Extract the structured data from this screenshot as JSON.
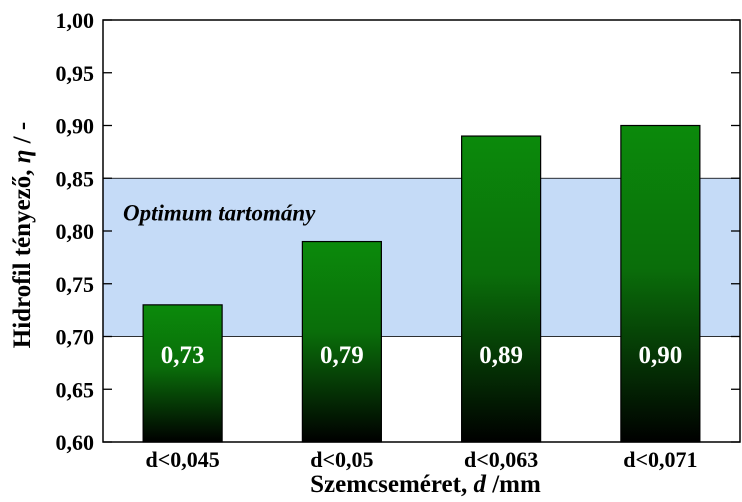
{
  "chart_data": {
    "type": "bar",
    "categories": [
      "d<0,045",
      "d<0,05",
      "d<0,063",
      "d<0,071"
    ],
    "values": [
      0.73,
      0.79,
      0.89,
      0.9
    ],
    "data_labels": [
      "0,73",
      "0,79",
      "0,89",
      "0,90"
    ],
    "ylim": [
      0.6,
      1.0
    ],
    "yticks": [
      0.6,
      0.65,
      0.7,
      0.75,
      0.8,
      0.85,
      0.9,
      0.95,
      1.0
    ],
    "ytick_labels": [
      "0,60",
      "0,65",
      "0,70",
      "0,75",
      "0,80",
      "0,85",
      "0,90",
      "0,95",
      "1,00"
    ],
    "xlabel_prefix": "Szemcseméret, ",
    "xlabel_symbol": "d",
    "xlabel_suffix": " /mm",
    "ylabel_prefix": "Hidrofil tényező, ",
    "ylabel_symbol": "η",
    "ylabel_suffix": " / -",
    "band": {
      "from": 0.7,
      "to": 0.85,
      "label": "Optimum tartomány",
      "color": "#c5dbf7"
    },
    "colors": {
      "bar_top": "#0b8a0b",
      "bar_bottom": "#000000",
      "frame": "#000000"
    },
    "grid": false,
    "legend": "none"
  }
}
